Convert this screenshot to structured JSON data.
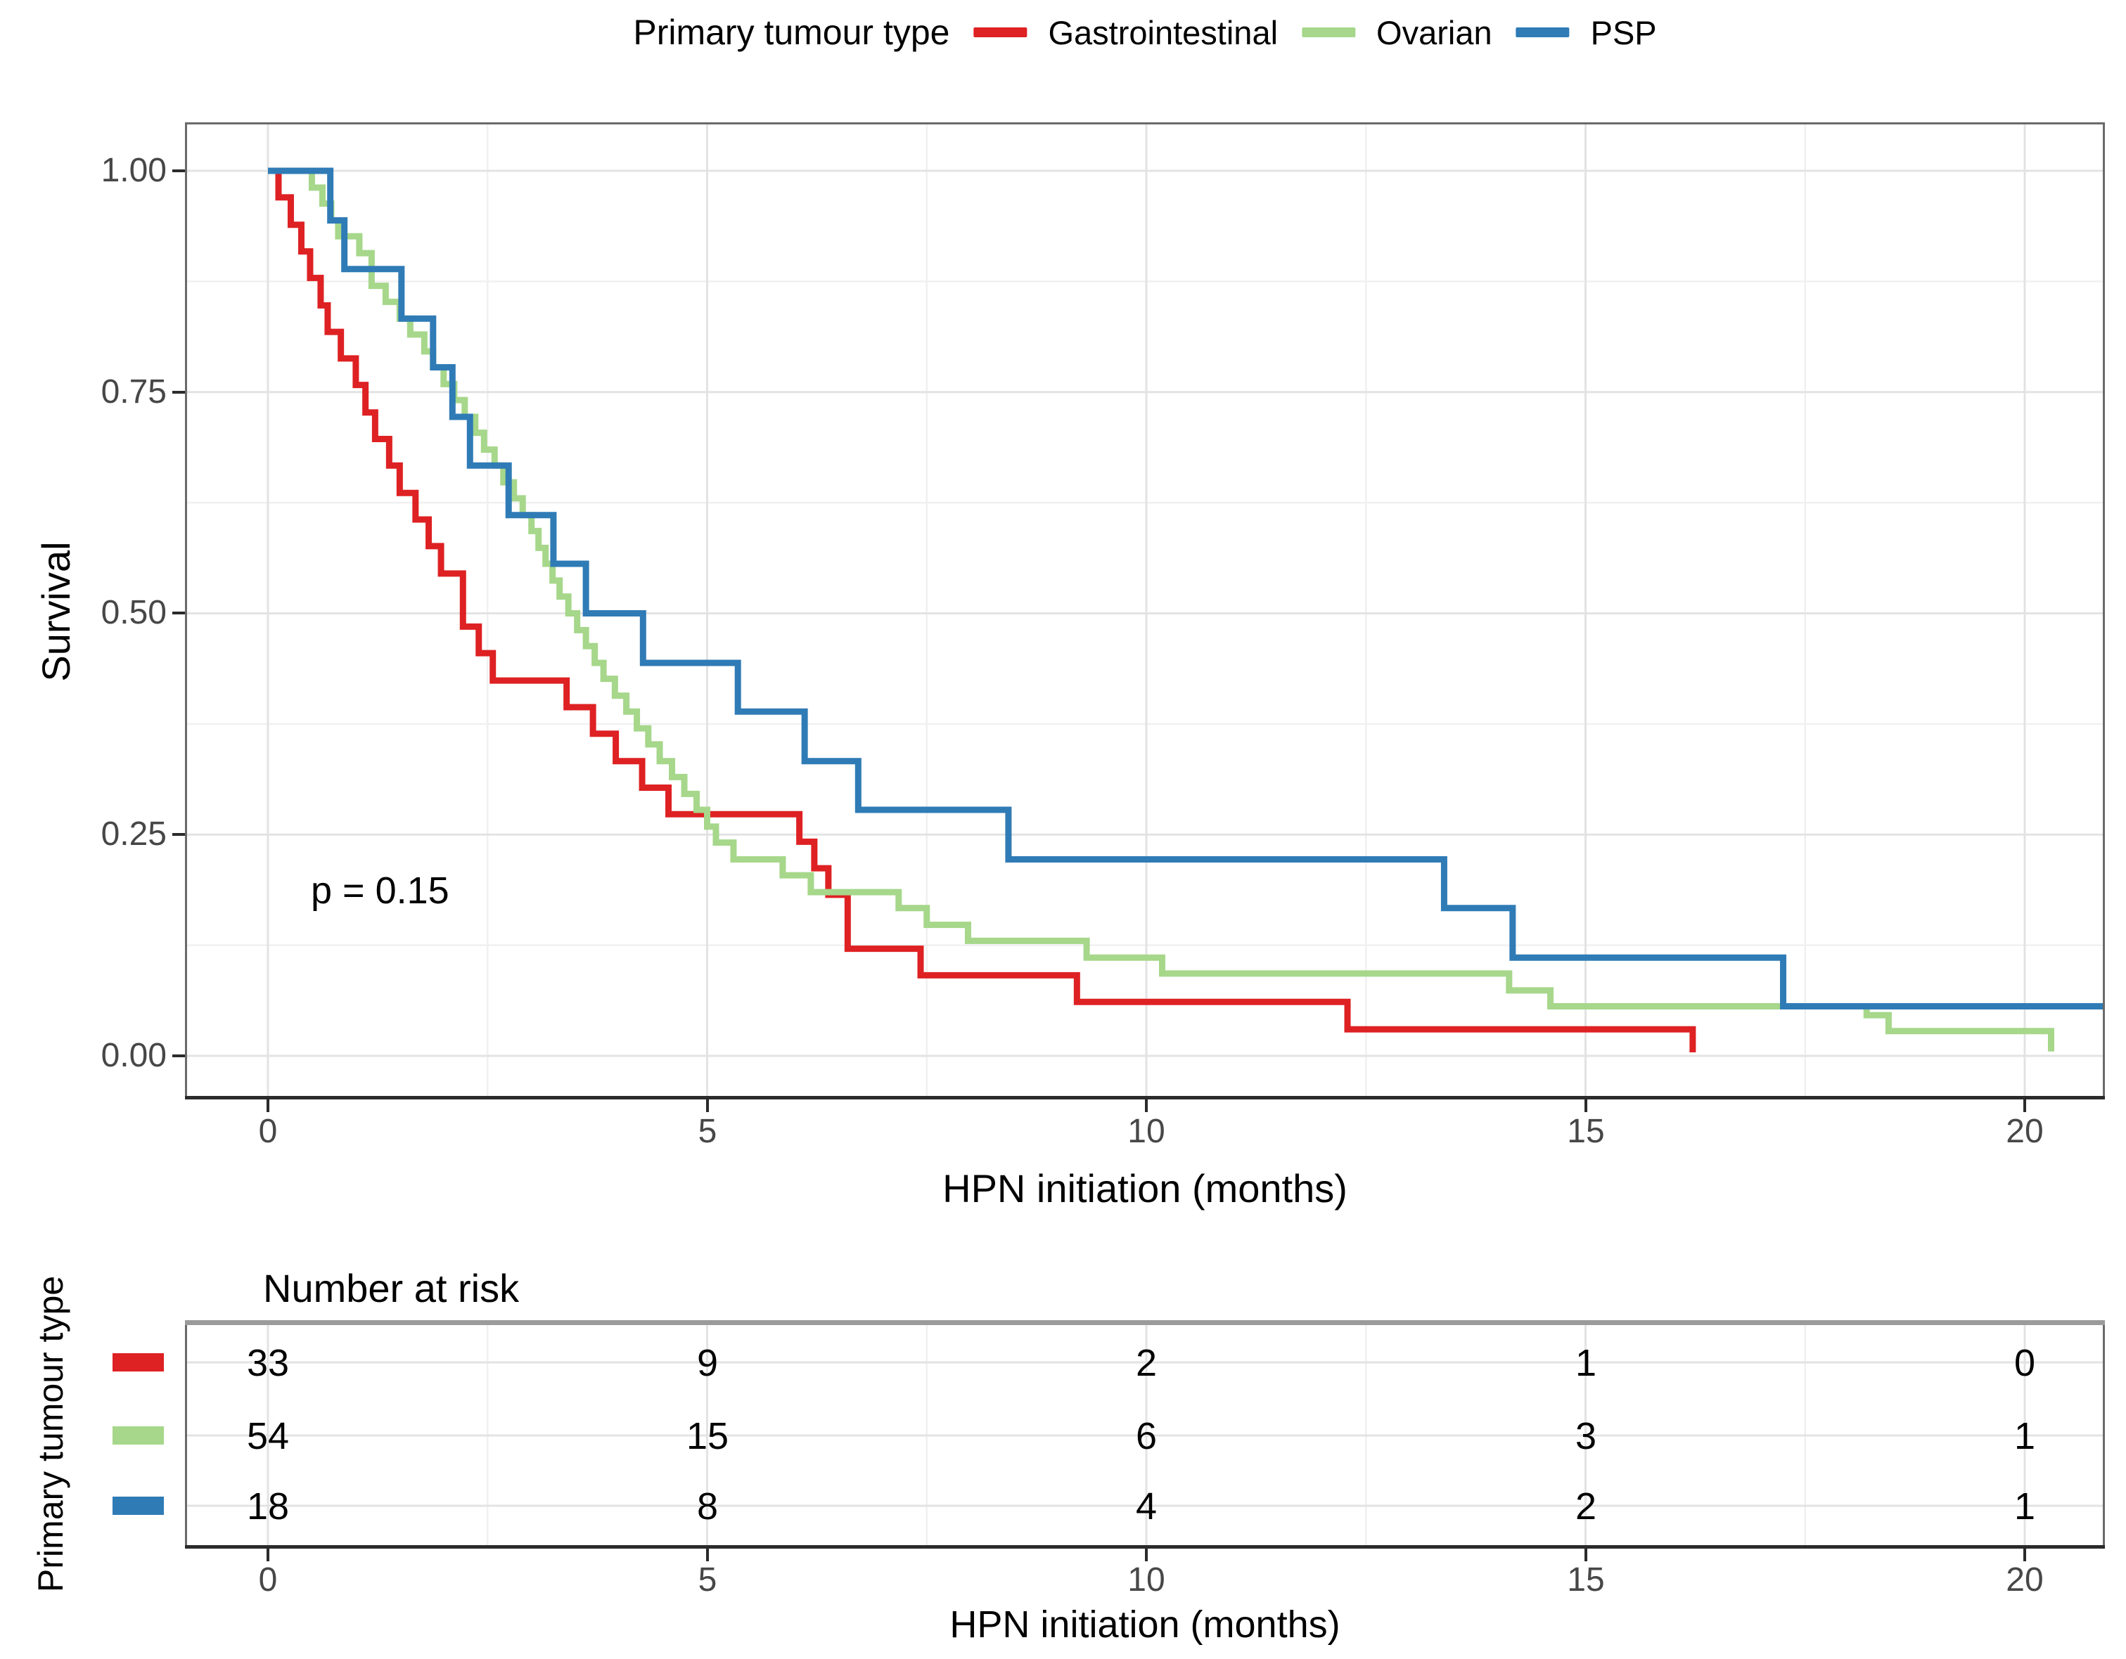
{
  "legend": {
    "title": "Primary tumour type",
    "items": [
      {
        "label": "Gastrointestinal",
        "color": "#DE2123"
      },
      {
        "label": "Ovarian",
        "color": "#A6D78A"
      },
      {
        "label": "PSP",
        "color": "#2F7BB6"
      }
    ]
  },
  "chart_data": {
    "type": "line",
    "subtype": "kaplan_meier_step",
    "title": "",
    "xlabel": "HPN initiation (months)",
    "ylabel": "Survival",
    "annotation": "p = 0.15",
    "xlim": [
      0,
      21
    ],
    "ylim": [
      0,
      1
    ],
    "grid": "on",
    "legend_position": "top",
    "xticks": [
      0,
      5,
      10,
      15,
      20
    ],
    "xtick_labels": [
      "0",
      "5",
      "10",
      "15",
      "20"
    ],
    "yticks": [
      1.0,
      0.75,
      0.5,
      0.25,
      0.0
    ],
    "ytick_labels": [
      "1.00",
      "0.75",
      "0.50",
      "0.25",
      "0.00"
    ],
    "series": [
      {
        "name": "Gastrointestinal",
        "color": "#DE2123",
        "n": 33,
        "steps": [
          [
            0,
            1.0
          ],
          [
            0.12,
            0.97
          ],
          [
            0.26,
            0.939
          ],
          [
            0.38,
            0.909
          ],
          [
            0.48,
            0.879
          ],
          [
            0.6,
            0.848
          ],
          [
            0.68,
            0.818
          ],
          [
            0.83,
            0.788
          ],
          [
            1.0,
            0.758
          ],
          [
            1.11,
            0.727
          ],
          [
            1.22,
            0.697
          ],
          [
            1.38,
            0.667
          ],
          [
            1.5,
            0.636
          ],
          [
            1.68,
            0.606
          ],
          [
            1.83,
            0.576
          ],
          [
            1.97,
            0.545
          ],
          [
            2.22,
            0.485
          ],
          [
            2.4,
            0.455
          ],
          [
            2.56,
            0.424
          ],
          [
            3.4,
            0.394
          ],
          [
            3.7,
            0.364
          ],
          [
            3.96,
            0.333
          ],
          [
            4.26,
            0.303
          ],
          [
            4.56,
            0.273
          ],
          [
            6.05,
            0.242
          ],
          [
            6.22,
            0.212
          ],
          [
            6.38,
            0.182
          ],
          [
            6.6,
            0.121
          ],
          [
            7.43,
            0.091
          ],
          [
            9.21,
            0.061
          ],
          [
            12.29,
            0.03
          ],
          [
            16.22,
            0.004
          ]
        ]
      },
      {
        "name": "Ovarian",
        "color": "#A6D78A",
        "n": 54,
        "steps": [
          [
            0,
            1.0
          ],
          [
            0.5,
            0.981
          ],
          [
            0.62,
            0.963
          ],
          [
            0.72,
            0.944
          ],
          [
            0.8,
            0.926
          ],
          [
            1.04,
            0.907
          ],
          [
            1.18,
            0.87
          ],
          [
            1.34,
            0.852
          ],
          [
            1.5,
            0.833
          ],
          [
            1.62,
            0.815
          ],
          [
            1.78,
            0.796
          ],
          [
            1.88,
            0.778
          ],
          [
            2.0,
            0.759
          ],
          [
            2.12,
            0.741
          ],
          [
            2.24,
            0.722
          ],
          [
            2.36,
            0.704
          ],
          [
            2.46,
            0.685
          ],
          [
            2.58,
            0.667
          ],
          [
            2.68,
            0.648
          ],
          [
            2.8,
            0.63
          ],
          [
            2.9,
            0.611
          ],
          [
            3.0,
            0.593
          ],
          [
            3.08,
            0.574
          ],
          [
            3.16,
            0.556
          ],
          [
            3.24,
            0.537
          ],
          [
            3.32,
            0.519
          ],
          [
            3.42,
            0.5
          ],
          [
            3.52,
            0.481
          ],
          [
            3.62,
            0.463
          ],
          [
            3.72,
            0.444
          ],
          [
            3.82,
            0.426
          ],
          [
            3.95,
            0.407
          ],
          [
            4.08,
            0.389
          ],
          [
            4.2,
            0.37
          ],
          [
            4.33,
            0.352
          ],
          [
            4.46,
            0.333
          ],
          [
            4.6,
            0.315
          ],
          [
            4.74,
            0.296
          ],
          [
            4.88,
            0.278
          ],
          [
            5.0,
            0.259
          ],
          [
            5.1,
            0.241
          ],
          [
            5.3,
            0.222
          ],
          [
            5.86,
            0.204
          ],
          [
            6.18,
            0.185
          ],
          [
            7.18,
            0.167
          ],
          [
            7.5,
            0.148
          ],
          [
            7.97,
            0.13
          ],
          [
            9.32,
            0.111
          ],
          [
            10.18,
            0.093
          ],
          [
            14.13,
            0.074
          ],
          [
            14.6,
            0.056
          ],
          [
            18.2,
            0.046
          ],
          [
            18.45,
            0.028
          ],
          [
            20.3,
            0.005
          ]
        ]
      },
      {
        "name": "PSP",
        "color": "#2F7BB6",
        "n": 18,
        "end_month": 20.9,
        "steps": [
          [
            0,
            1.0
          ],
          [
            0.71,
            0.944
          ],
          [
            0.87,
            0.889
          ],
          [
            1.52,
            0.833
          ],
          [
            1.88,
            0.778
          ],
          [
            2.1,
            0.722
          ],
          [
            2.3,
            0.667
          ],
          [
            2.74,
            0.611
          ],
          [
            3.25,
            0.556
          ],
          [
            3.62,
            0.5
          ],
          [
            4.27,
            0.444
          ],
          [
            5.35,
            0.389
          ],
          [
            6.11,
            0.333
          ],
          [
            6.72,
            0.278
          ],
          [
            8.43,
            0.222
          ],
          [
            13.39,
            0.167
          ],
          [
            14.17,
            0.111
          ],
          [
            17.25,
            0.056
          ]
        ]
      }
    ]
  },
  "risk_table": {
    "title": "Number at risk",
    "ylabel": "Primary tumour type",
    "xlabel": "HPN initiation (months)",
    "times": [
      0,
      5,
      10,
      15,
      20
    ],
    "time_labels": [
      "0",
      "5",
      "10",
      "15",
      "20"
    ],
    "rows": [
      {
        "name": "Gastrointestinal",
        "color": "#DE2123",
        "counts": [
          "33",
          "9",
          "2",
          "1",
          "0"
        ]
      },
      {
        "name": "Ovarian",
        "color": "#A6D78A",
        "counts": [
          "54",
          "15",
          "6",
          "3",
          "1"
        ]
      },
      {
        "name": "PSP",
        "color": "#2F7BB6",
        "counts": [
          "18",
          "8",
          "4",
          "2",
          "1"
        ]
      }
    ]
  }
}
